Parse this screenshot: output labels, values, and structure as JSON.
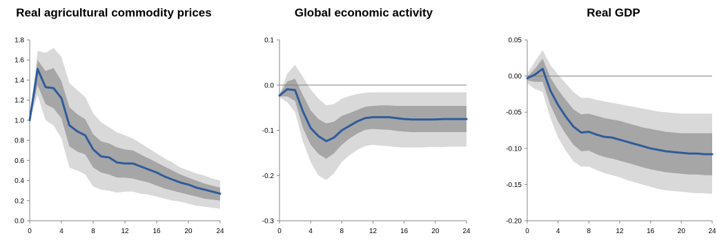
{
  "chart_data": [
    {
      "type": "line",
      "title": "Real agricultural commodity prices",
      "xlabel": "",
      "ylabel": "",
      "xlim": [
        0,
        24
      ],
      "ylim": [
        0.0,
        1.8
      ],
      "x_ticks": [
        0,
        4,
        8,
        12,
        16,
        20,
        24
      ],
      "x_tick_labels": [
        "0",
        "4",
        "8",
        "12",
        "16",
        "20",
        "24"
      ],
      "y_ticks": [
        0.0,
        0.2,
        0.4,
        0.6,
        0.8,
        1.0,
        1.2,
        1.4,
        1.6,
        1.8
      ],
      "y_tick_labels": [
        "0.0",
        "0.2",
        "0.4",
        "0.6",
        "0.8",
        "1.0",
        "1.2",
        "1.4",
        "1.6",
        "1.8"
      ],
      "zero_line": false,
      "grid": false,
      "legend": "none",
      "colors": {
        "line": "#2e5b9a",
        "inner_band": "#a6a6a6",
        "outer_band": "#d9d9d9",
        "axis": "#868686"
      },
      "x": [
        0,
        1,
        2,
        3,
        4,
        5,
        6,
        7,
        8,
        9,
        10,
        11,
        12,
        13,
        14,
        15,
        16,
        17,
        18,
        19,
        20,
        21,
        22,
        23,
        24
      ],
      "series": [
        {
          "role": "median",
          "values": [
            1.0,
            1.51,
            1.33,
            1.32,
            1.22,
            0.95,
            0.89,
            0.85,
            0.71,
            0.64,
            0.63,
            0.58,
            0.57,
            0.57,
            0.54,
            0.51,
            0.48,
            0.44,
            0.41,
            0.38,
            0.36,
            0.33,
            0.31,
            0.29,
            0.27
          ]
        },
        {
          "role": "inner_lower",
          "values": [
            1.0,
            1.35,
            1.16,
            1.12,
            1.02,
            0.74,
            0.69,
            0.66,
            0.53,
            0.48,
            0.46,
            0.43,
            0.43,
            0.42,
            0.4,
            0.38,
            0.35,
            0.32,
            0.3,
            0.28,
            0.26,
            0.24,
            0.22,
            0.21,
            0.2
          ]
        },
        {
          "role": "inner_upper",
          "values": [
            1.0,
            1.6,
            1.49,
            1.52,
            1.39,
            1.13,
            1.06,
            1.01,
            0.86,
            0.79,
            0.77,
            0.73,
            0.71,
            0.7,
            0.66,
            0.62,
            0.58,
            0.54,
            0.5,
            0.46,
            0.43,
            0.4,
            0.37,
            0.35,
            0.33
          ]
        },
        {
          "role": "outer_lower",
          "values": [
            1.0,
            1.25,
            1.0,
            0.95,
            0.82,
            0.53,
            0.5,
            0.46,
            0.34,
            0.31,
            0.3,
            0.28,
            0.29,
            0.29,
            0.27,
            0.26,
            0.24,
            0.22,
            0.2,
            0.19,
            0.17,
            0.15,
            0.14,
            0.13,
            0.12
          ]
        },
        {
          "role": "outer_upper",
          "values": [
            1.0,
            1.69,
            1.67,
            1.72,
            1.63,
            1.37,
            1.3,
            1.23,
            1.07,
            0.98,
            0.93,
            0.88,
            0.85,
            0.82,
            0.77,
            0.72,
            0.67,
            0.62,
            0.58,
            0.53,
            0.5,
            0.47,
            0.45,
            0.42,
            0.4
          ]
        }
      ]
    },
    {
      "type": "line",
      "title": "Global economic activity",
      "xlabel": "",
      "ylabel": "",
      "xlim": [
        0,
        24
      ],
      "ylim": [
        -0.3,
        0.1
      ],
      "x_ticks": [
        0,
        4,
        8,
        12,
        16,
        20,
        24
      ],
      "x_tick_labels": [
        "0",
        "4",
        "8",
        "12",
        "16",
        "20",
        "24"
      ],
      "y_ticks": [
        -0.3,
        -0.2,
        -0.1,
        0.0,
        0.1
      ],
      "y_tick_labels": [
        "-0.3",
        "-0.2",
        "-0.1",
        "0.0",
        "0.1"
      ],
      "zero_line": true,
      "grid": false,
      "legend": "none",
      "colors": {
        "line": "#2e5b9a",
        "inner_band": "#a6a6a6",
        "outer_band": "#d9d9d9",
        "axis": "#868686"
      },
      "x": [
        0,
        1,
        2,
        3,
        4,
        5,
        6,
        7,
        8,
        9,
        10,
        11,
        12,
        13,
        14,
        15,
        16,
        17,
        18,
        19,
        20,
        21,
        22,
        23,
        24
      ],
      "series": [
        {
          "role": "median",
          "values": [
            -0.023,
            -0.009,
            -0.011,
            -0.058,
            -0.095,
            -0.113,
            -0.124,
            -0.116,
            -0.1,
            -0.09,
            -0.08,
            -0.073,
            -0.071,
            -0.071,
            -0.071,
            -0.073,
            -0.075,
            -0.076,
            -0.076,
            -0.076,
            -0.076,
            -0.075,
            -0.075,
            -0.075,
            -0.075
          ]
        },
        {
          "role": "inner_lower",
          "values": [
            -0.025,
            -0.025,
            -0.035,
            -0.095,
            -0.132,
            -0.152,
            -0.163,
            -0.151,
            -0.132,
            -0.118,
            -0.107,
            -0.099,
            -0.097,
            -0.098,
            -0.099,
            -0.101,
            -0.103,
            -0.104,
            -0.104,
            -0.104,
            -0.104,
            -0.104,
            -0.104,
            -0.104,
            -0.104
          ]
        },
        {
          "role": "inner_upper",
          "values": [
            -0.021,
            0.008,
            0.014,
            -0.022,
            -0.056,
            -0.075,
            -0.085,
            -0.081,
            -0.068,
            -0.062,
            -0.055,
            -0.048,
            -0.046,
            -0.045,
            -0.045,
            -0.046,
            -0.046,
            -0.046,
            -0.046,
            -0.046,
            -0.046,
            -0.046,
            -0.046,
            -0.046,
            -0.046
          ]
        },
        {
          "role": "outer_lower",
          "values": [
            -0.027,
            -0.038,
            -0.06,
            -0.125,
            -0.17,
            -0.2,
            -0.21,
            -0.195,
            -0.17,
            -0.155,
            -0.143,
            -0.135,
            -0.132,
            -0.134,
            -0.135,
            -0.137,
            -0.138,
            -0.138,
            -0.138,
            -0.137,
            -0.137,
            -0.137,
            -0.136,
            -0.136,
            -0.136
          ]
        },
        {
          "role": "outer_upper",
          "values": [
            -0.019,
            0.025,
            0.045,
            0.018,
            -0.01,
            -0.03,
            -0.045,
            -0.042,
            -0.03,
            -0.024,
            -0.02,
            -0.017,
            -0.016,
            -0.016,
            -0.016,
            -0.016,
            -0.016,
            -0.016,
            -0.016,
            -0.016,
            -0.016,
            -0.016,
            -0.016,
            -0.016,
            -0.016
          ]
        }
      ]
    },
    {
      "type": "line",
      "title": "Real GDP",
      "xlabel": "",
      "ylabel": "",
      "xlim": [
        0,
        24
      ],
      "ylim": [
        -0.2,
        0.05
      ],
      "x_ticks": [
        0,
        4,
        8,
        12,
        16,
        20,
        24
      ],
      "x_tick_labels": [
        "0",
        "4",
        "8",
        "12",
        "16",
        "20",
        "24"
      ],
      "y_ticks": [
        -0.2,
        -0.15,
        -0.1,
        -0.05,
        0.0,
        0.05
      ],
      "y_tick_labels": [
        "-0.20",
        "-0.15",
        "-0.10",
        "-0.05",
        "0.00",
        "0.05"
      ],
      "zero_line": true,
      "grid": false,
      "legend": "none",
      "colors": {
        "line": "#2e5b9a",
        "inner_band": "#a6a6a6",
        "outer_band": "#d9d9d9",
        "axis": "#868686"
      },
      "x": [
        0,
        1,
        2,
        3,
        4,
        5,
        6,
        7,
        8,
        9,
        10,
        11,
        12,
        13,
        14,
        15,
        16,
        17,
        18,
        19,
        20,
        21,
        22,
        23,
        24
      ],
      "series": [
        {
          "role": "median",
          "values": [
            -0.003,
            0.002,
            0.01,
            -0.02,
            -0.04,
            -0.056,
            -0.07,
            -0.078,
            -0.077,
            -0.081,
            -0.084,
            -0.085,
            -0.088,
            -0.091,
            -0.094,
            -0.097,
            -0.1,
            -0.102,
            -0.104,
            -0.105,
            -0.106,
            -0.107,
            -0.107,
            -0.108,
            -0.108
          ]
        },
        {
          "role": "inner_lower",
          "values": [
            -0.006,
            -0.008,
            -0.008,
            -0.04,
            -0.063,
            -0.08,
            -0.095,
            -0.104,
            -0.103,
            -0.108,
            -0.112,
            -0.114,
            -0.117,
            -0.12,
            -0.123,
            -0.126,
            -0.129,
            -0.131,
            -0.133,
            -0.134,
            -0.135,
            -0.136,
            -0.136,
            -0.137,
            -0.137
          ]
        },
        {
          "role": "inner_upper",
          "values": [
            -0.001,
            0.01,
            0.024,
            -0.002,
            -0.019,
            -0.033,
            -0.046,
            -0.053,
            -0.052,
            -0.055,
            -0.058,
            -0.06,
            -0.062,
            -0.065,
            -0.068,
            -0.071,
            -0.073,
            -0.075,
            -0.077,
            -0.078,
            -0.079,
            -0.079,
            -0.079,
            -0.079,
            -0.079
          ]
        },
        {
          "role": "outer_lower",
          "values": [
            -0.01,
            -0.018,
            -0.022,
            -0.058,
            -0.085,
            -0.103,
            -0.118,
            -0.125,
            -0.125,
            -0.13,
            -0.134,
            -0.137,
            -0.14,
            -0.144,
            -0.147,
            -0.15,
            -0.153,
            -0.156,
            -0.158,
            -0.159,
            -0.16,
            -0.161,
            -0.162,
            -0.162,
            -0.163
          ]
        },
        {
          "role": "outer_upper",
          "values": [
            0.003,
            0.02,
            0.036,
            0.015,
            0.002,
            -0.01,
            -0.022,
            -0.03,
            -0.03,
            -0.033,
            -0.035,
            -0.037,
            -0.039,
            -0.041,
            -0.043,
            -0.045,
            -0.047,
            -0.049,
            -0.05,
            -0.051,
            -0.052,
            -0.052,
            -0.052,
            -0.052,
            -0.052
          ]
        }
      ]
    }
  ]
}
